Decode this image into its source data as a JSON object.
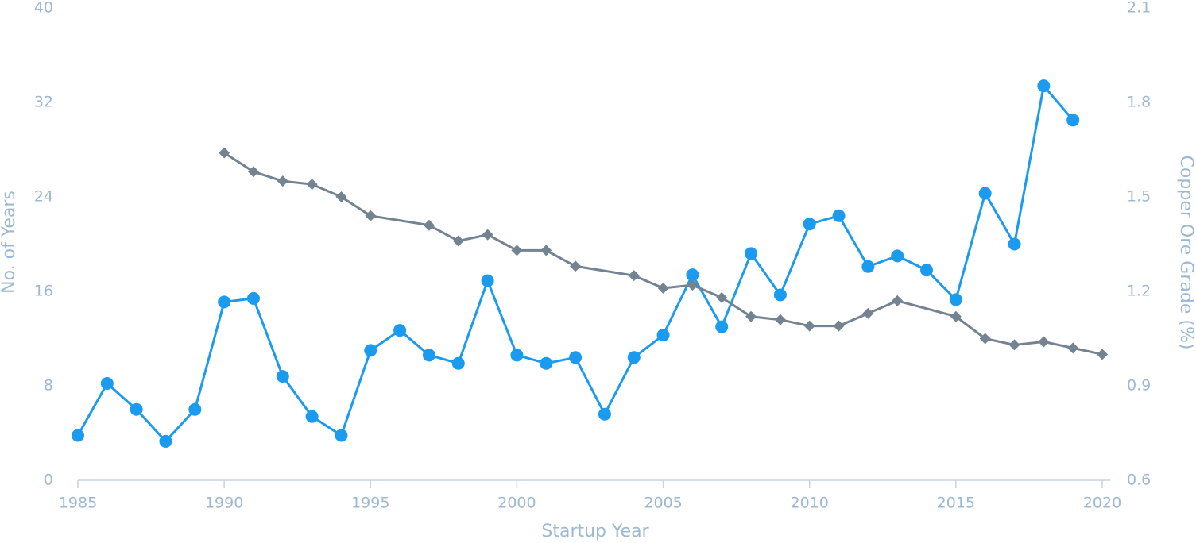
{
  "chart_data": {
    "type": "line",
    "x_label": "Startup Year",
    "y_label": "No. of Years",
    "y2_label": "Copper Ore Grade (%)",
    "xlim": [
      1985,
      2020
    ],
    "xticks": [
      1985,
      1990,
      1995,
      2000,
      2005,
      2010,
      2015,
      2020
    ],
    "ylim": [
      0,
      40
    ],
    "yticks": [
      0,
      8,
      16,
      24,
      32,
      40
    ],
    "y2lim": [
      0.6,
      2.1
    ],
    "y2ticks": [
      0.6,
      0.9,
      1.2,
      1.5,
      1.8,
      2.1
    ],
    "grid": false,
    "series": [
      {
        "color": "#1a9bef",
        "marker": "circle",
        "axis": "y",
        "x": [
          1985,
          1986,
          1987,
          1988,
          1989,
          1990,
          1991,
          1992,
          1993,
          1994,
          1995,
          1996,
          1997,
          1998,
          1999,
          2000,
          2001,
          2002,
          2003,
          2004,
          2005,
          2006,
          2007,
          2008,
          2009,
          2010,
          2011,
          2012,
          2013,
          2014,
          2015,
          2016,
          2017,
          2018,
          2019
        ],
        "values": [
          3.8,
          8.2,
          6.0,
          3.3,
          6.0,
          15.1,
          15.4,
          8.8,
          5.4,
          3.8,
          11.0,
          12.7,
          10.6,
          9.9,
          16.9,
          10.6,
          9.9,
          10.4,
          5.6,
          10.4,
          12.3,
          17.4,
          13.0,
          19.2,
          15.7,
          21.7,
          22.4,
          18.1,
          19.0,
          17.8,
          15.3,
          24.3,
          20.0,
          33.4,
          30.5
        ]
      },
      {
        "color": "#738391",
        "marker": "diamond",
        "axis": "y2",
        "x": [
          1990,
          1991,
          1992,
          1993,
          1994,
          1995,
          1997,
          1998,
          1999,
          2000,
          2001,
          2002,
          2004,
          2005,
          2006,
          2007,
          2008,
          2009,
          2010,
          2011,
          2012,
          2013,
          2015,
          2016,
          2017,
          2018,
          2019,
          2020
        ],
        "values": [
          1.64,
          1.58,
          1.55,
          1.54,
          1.5,
          1.44,
          1.41,
          1.36,
          1.38,
          1.33,
          1.33,
          1.28,
          1.25,
          1.21,
          1.22,
          1.18,
          1.12,
          1.11,
          1.09,
          1.09,
          1.13,
          1.17,
          1.12,
          1.05,
          1.03,
          1.04,
          1.02,
          1.0
        ]
      }
    ]
  }
}
